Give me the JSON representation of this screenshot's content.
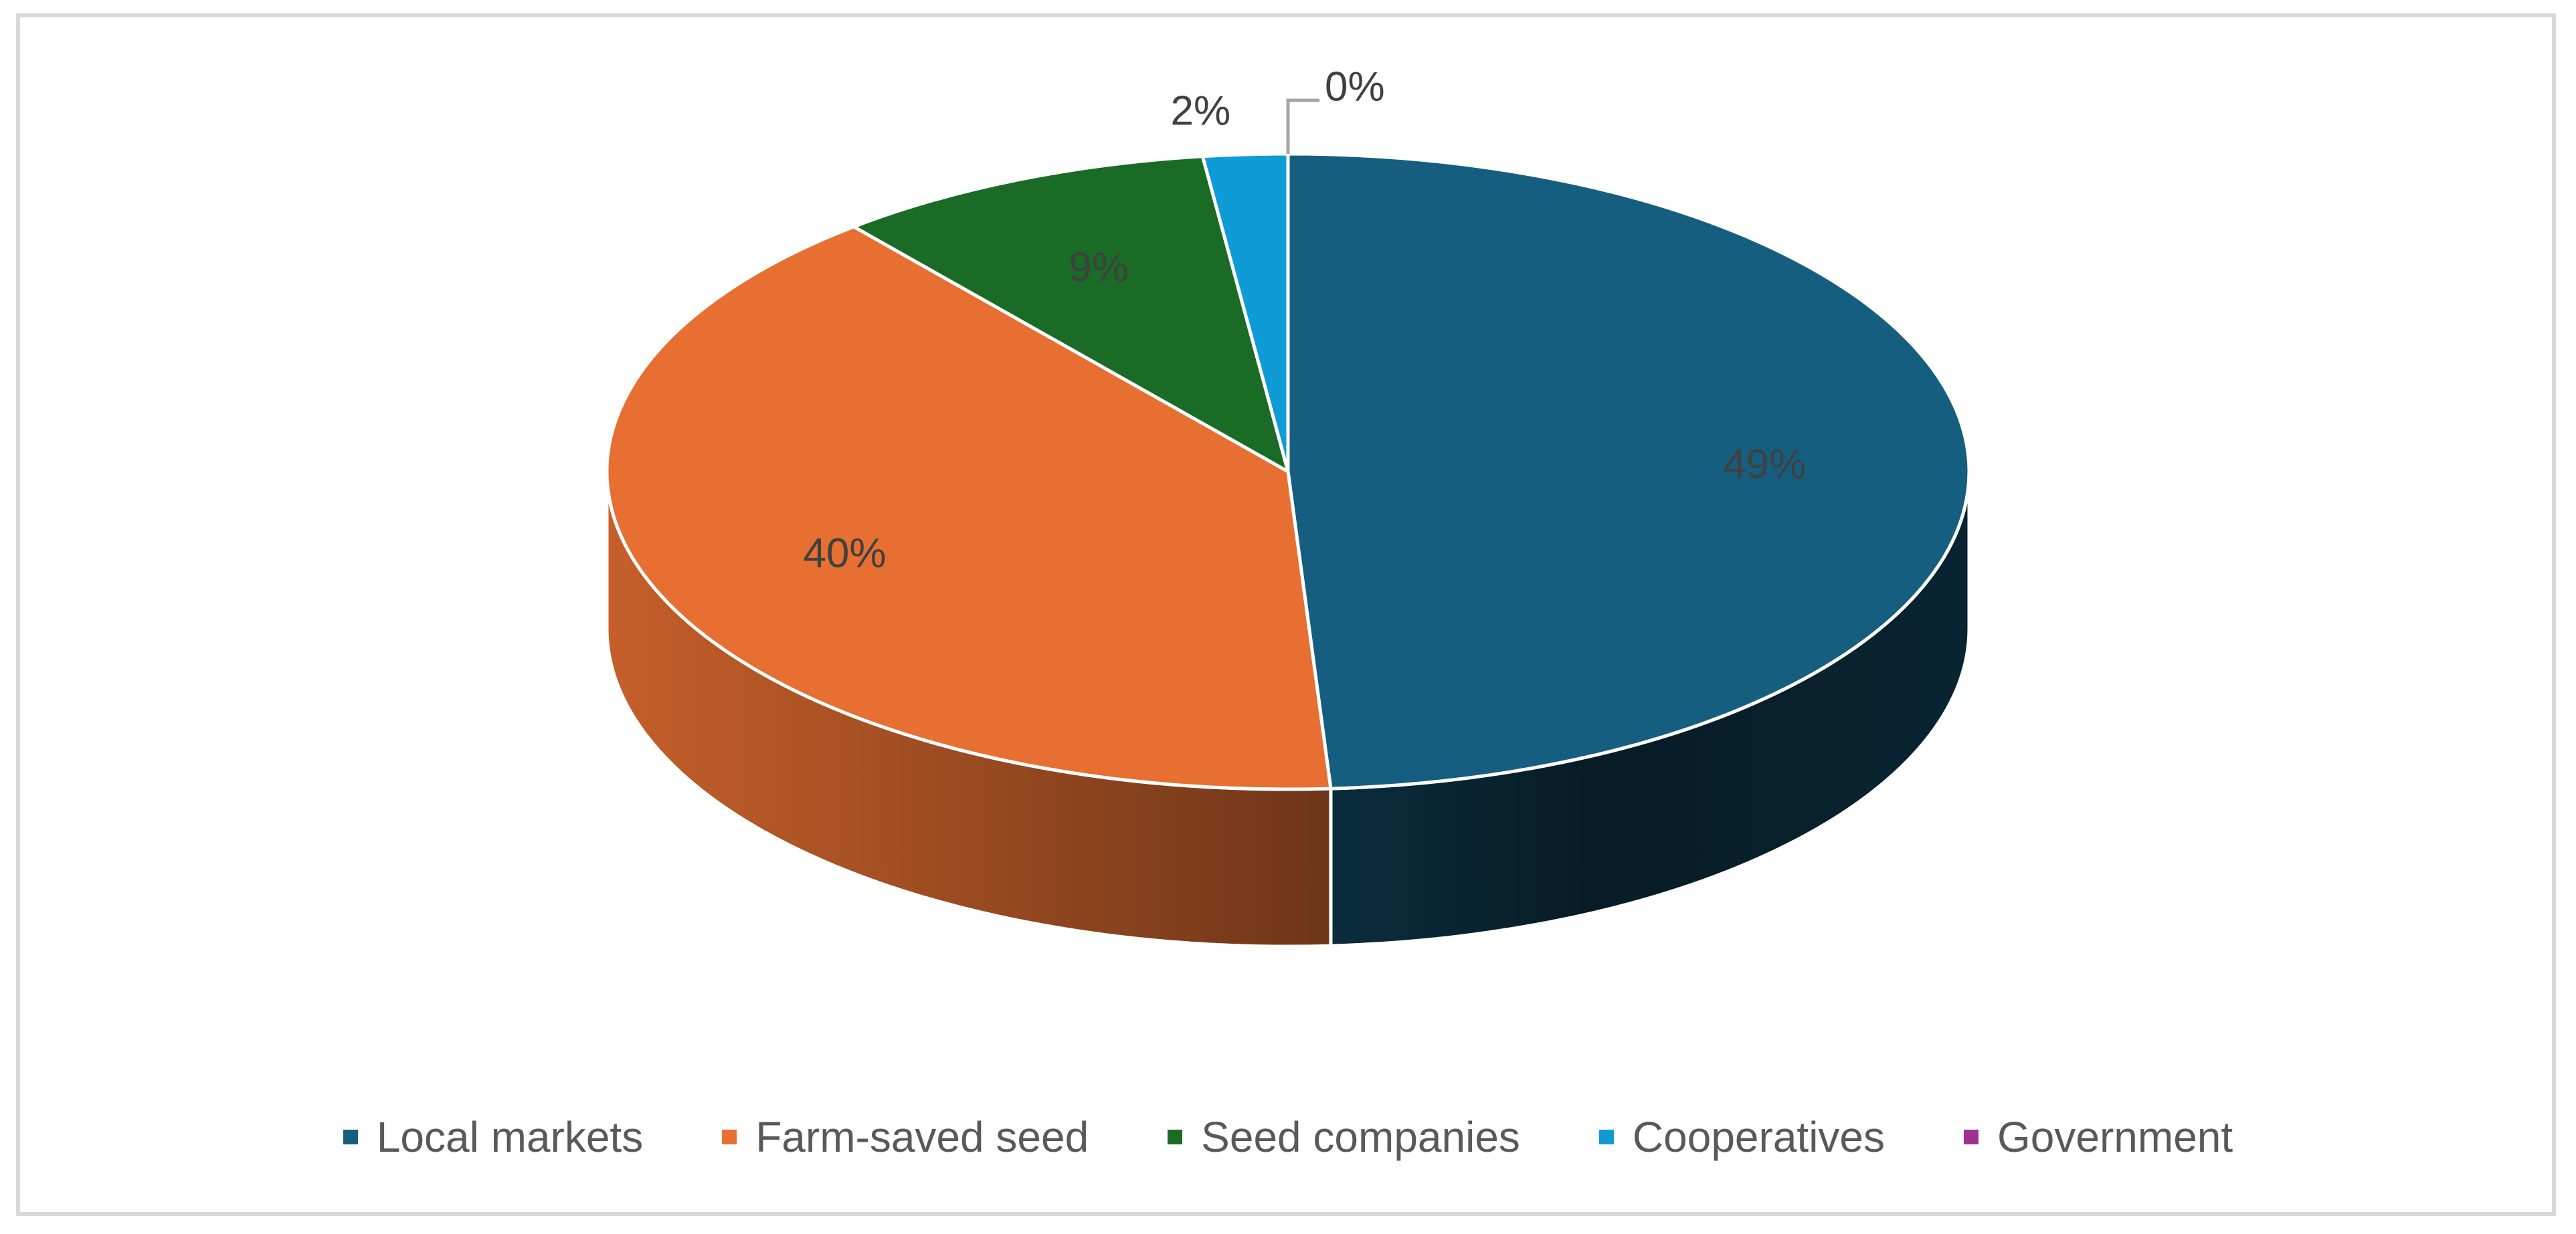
{
  "chart_data": {
    "type": "pie",
    "style": "3d",
    "categories": [
      "Local markets",
      "Farm-saved seed",
      "Seed companies",
      "Cooperatives",
      "Government"
    ],
    "values": [
      49,
      40,
      9,
      2,
      0
    ],
    "data_labels": [
      "49%",
      "40%",
      "9%",
      "2%",
      "0%"
    ],
    "colors": [
      "#165e80",
      "#e66f31",
      "#1a6b25",
      "#0f9bd6",
      "#a03090"
    ],
    "title": "",
    "legend_position": "bottom"
  }
}
